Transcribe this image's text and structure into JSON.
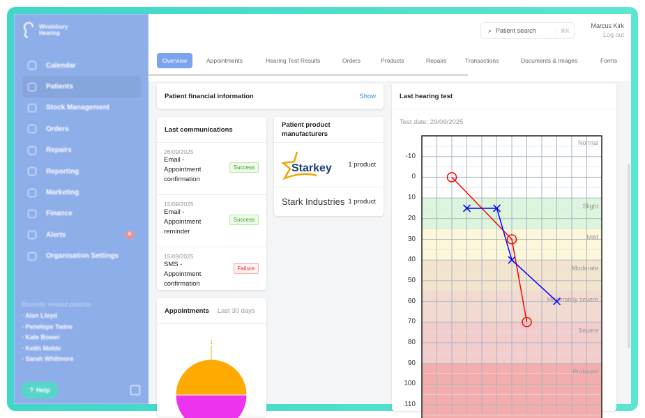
{
  "brand": {
    "name_line1": "Windsbury",
    "name_line2": "Hearing"
  },
  "sidebar": {
    "items": [
      {
        "label": "Calendar",
        "icon": "calendar-icon"
      },
      {
        "label": "Patients",
        "icon": "patients-icon",
        "active": true
      },
      {
        "label": "Stock Management",
        "icon": "clipboard-icon"
      },
      {
        "label": "Orders",
        "icon": "orders-icon"
      },
      {
        "label": "Repairs",
        "icon": "wrench-icon"
      },
      {
        "label": "Reporting",
        "icon": "chart-pie-icon"
      },
      {
        "label": "Marketing",
        "icon": "envelope-icon"
      },
      {
        "label": "Finance",
        "icon": "credit-card-icon"
      },
      {
        "label": "Alerts",
        "icon": "bell-icon",
        "badge": "6"
      },
      {
        "label": "Organisation Settings",
        "icon": "gear-icon"
      }
    ],
    "recent_title": "Recently viewed patients",
    "recent": [
      "Alan Lloyd",
      "Penelope Twine",
      "Kate Bower",
      "Keith Molde",
      "Sarah Whitmore"
    ],
    "help": "Help"
  },
  "header": {
    "search_placeholder": "Patient search",
    "shortcut": "⌘K",
    "user": "Marcus Kirk",
    "logout": "Log out"
  },
  "tabs": [
    "Overview",
    "Appointments",
    "Hearing Test Results",
    "Orders",
    "Products",
    "Repairs",
    "Transactions",
    "Documents & Images",
    "Forms"
  ],
  "financial": {
    "title": "Patient financial information",
    "action": "Show"
  },
  "communications": {
    "title": "Last communications",
    "items": [
      {
        "date": "26/09/2025",
        "text": "Email - Appointment confirmation",
        "status": "Success"
      },
      {
        "date": "15/09/2025",
        "text": "Email - Appointment reminder",
        "status": "Success"
      },
      {
        "date": "15/09/2025",
        "text": "SMS - Appointment confirmation",
        "status": "Failure"
      }
    ]
  },
  "manufacturers": {
    "title": "Patient product manufacturers",
    "items": [
      {
        "name": "Starkey",
        "count": "1 product"
      },
      {
        "name": "Stark Industries",
        "count": "1 product"
      }
    ]
  },
  "appointments": {
    "title": "Appointments",
    "range": "Last 30 days",
    "chart_data": {
      "type": "pie",
      "slices": [
        {
          "value": 1,
          "label": "1",
          "color": "#ffaa00"
        },
        {
          "value": 1,
          "color": "#ee33ee"
        }
      ]
    }
  },
  "hearing": {
    "title": "Last hearing test",
    "date": "Test date: 29/09/2025",
    "chart_data": {
      "type": "line",
      "ylim": [
        -20,
        110
      ],
      "y_inverted": true,
      "yticks": [
        -10,
        0,
        10,
        20,
        30,
        40,
        50,
        60,
        70,
        80,
        90,
        100,
        110
      ],
      "bands": [
        {
          "label": "Normal",
          "from": -20,
          "to": 10,
          "color": "#ffffff"
        },
        {
          "label": "Slight",
          "from": 10,
          "to": 25,
          "color": "#dcf5dc"
        },
        {
          "label": "Mild",
          "from": 25,
          "to": 40,
          "color": "#fdf7da"
        },
        {
          "label": "Moderate",
          "from": 40,
          "to": 55,
          "color": "#f3e4cd"
        },
        {
          "label": "Moderately severe",
          "from": 55,
          "to": 70,
          "color": "#f3dad0"
        },
        {
          "label": "Severe",
          "from": 70,
          "to": 90,
          "color": "#f3cccc"
        },
        {
          "label": "Profound",
          "from": 90,
          "to": 120,
          "color": "#f4adad"
        }
      ],
      "series": [
        {
          "marker": "circle",
          "color": "#ff0000",
          "points": [
            [
              2,
              0
            ],
            [
              6,
              30
            ],
            [
              7,
              70
            ]
          ]
        },
        {
          "marker": "cross",
          "color": "#0000ff",
          "points": [
            [
              3,
              15
            ],
            [
              5,
              15
            ],
            [
              6,
              40
            ],
            [
              9,
              60
            ]
          ]
        }
      ]
    }
  }
}
